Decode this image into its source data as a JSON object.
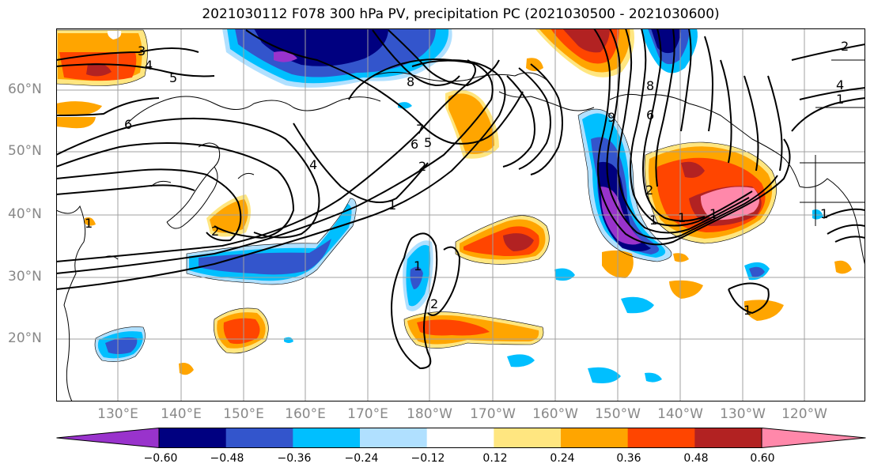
{
  "title": "2021030112 F078 300 hPa PV, precipitation PC (2021030500 - 2021030600)",
  "lat_labels": [
    "60°N",
    "50°N",
    "40°N",
    "30°N",
    "20°N"
  ],
  "lon_labels": [
    "130°E",
    "140°E",
    "150°E",
    "160°E",
    "170°E",
    "180°W",
    "170°W",
    "160°W",
    "150°W",
    "140°W",
    "130°W",
    "120°W"
  ],
  "colorbar": {
    "colors": [
      "#9933cc",
      "#000080",
      "#3355cc",
      "#00bfff",
      "#b0e0ff",
      "#ffffff",
      "#ffe680",
      "#ffa500",
      "#ff4500",
      "#b22222",
      "#ff88aa"
    ],
    "tick_labels": [
      "−0.60",
      "−0.48",
      "−0.36",
      "−0.24",
      "−0.12",
      "0.12",
      "0.24",
      "0.36",
      "0.48",
      "0.60"
    ]
  },
  "pv_contour_labels": [
    "3",
    "4",
    "5",
    "6",
    "8",
    "7",
    "6",
    "5",
    "2",
    "4",
    "1",
    "2",
    "1",
    "2",
    "1",
    "9",
    "8",
    "6",
    "2",
    "1",
    "1",
    "1",
    "1",
    "2",
    "4",
    "1",
    "1"
  ]
}
